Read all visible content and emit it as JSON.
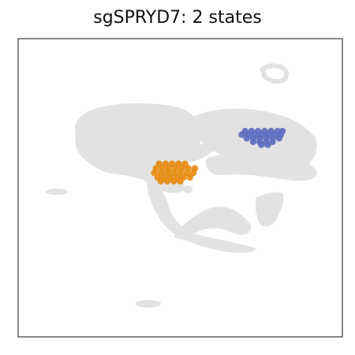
{
  "chart_data": {
    "type": "scatter",
    "title": "sgSPRYD7: 2 states",
    "xlabel": "",
    "ylabel": "",
    "axes_ticks": false,
    "grid": false,
    "legend": "none",
    "background_color": "#e0e0e0",
    "series": [
      {
        "color": "#e8890c",
        "points": [
          [
            0.435,
            0.42
          ],
          [
            0.455,
            0.42
          ],
          [
            0.475,
            0.42
          ],
          [
            0.495,
            0.42
          ],
          [
            0.515,
            0.42
          ],
          [
            0.425,
            0.435
          ],
          [
            0.445,
            0.435
          ],
          [
            0.465,
            0.435
          ],
          [
            0.485,
            0.435
          ],
          [
            0.505,
            0.435
          ],
          [
            0.525,
            0.435
          ],
          [
            0.545,
            0.435
          ],
          [
            0.42,
            0.45
          ],
          [
            0.44,
            0.45
          ],
          [
            0.46,
            0.45
          ],
          [
            0.48,
            0.45
          ],
          [
            0.5,
            0.45
          ],
          [
            0.52,
            0.45
          ],
          [
            0.54,
            0.45
          ],
          [
            0.43,
            0.465
          ],
          [
            0.45,
            0.465
          ],
          [
            0.47,
            0.465
          ],
          [
            0.49,
            0.465
          ],
          [
            0.51,
            0.465
          ],
          [
            0.53,
            0.465
          ],
          [
            0.44,
            0.478
          ],
          [
            0.46,
            0.478
          ],
          [
            0.48,
            0.478
          ],
          [
            0.5,
            0.478
          ]
        ]
      },
      {
        "color": "#5c6bc0",
        "points": [
          [
            0.7,
            0.31
          ],
          [
            0.72,
            0.31
          ],
          [
            0.74,
            0.31
          ],
          [
            0.76,
            0.31
          ],
          [
            0.78,
            0.31
          ],
          [
            0.8,
            0.31
          ],
          [
            0.815,
            0.31
          ],
          [
            0.69,
            0.322
          ],
          [
            0.71,
            0.322
          ],
          [
            0.73,
            0.322
          ],
          [
            0.75,
            0.322
          ],
          [
            0.77,
            0.322
          ],
          [
            0.79,
            0.322
          ],
          [
            0.81,
            0.322
          ],
          [
            0.705,
            0.334
          ],
          [
            0.725,
            0.334
          ],
          [
            0.745,
            0.334
          ],
          [
            0.765,
            0.334
          ],
          [
            0.785,
            0.334
          ],
          [
            0.805,
            0.334
          ],
          [
            0.725,
            0.346
          ],
          [
            0.745,
            0.346
          ],
          [
            0.765,
            0.346
          ],
          [
            0.785,
            0.346
          ],
          [
            0.75,
            0.356
          ],
          [
            0.77,
            0.356
          ]
        ]
      }
    ]
  }
}
